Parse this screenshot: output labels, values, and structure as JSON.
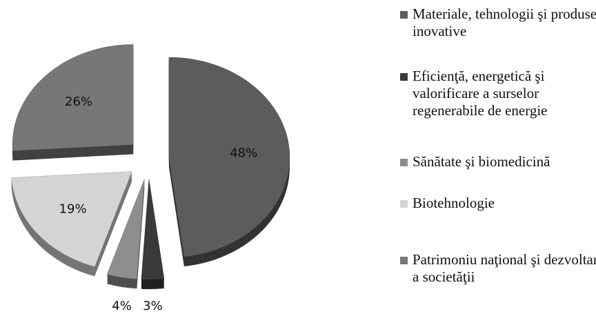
{
  "chart_data": {
    "type": "pie",
    "categories": [
      "Materiale, tehnologii şi produse inovative",
      "Eficienţă, energetică şi valorificare a surselor regenerabile de energie",
      "Sănătate şi biomedicină",
      "Biotehnologie",
      "Patrimoniu naţional şi dezvoltare a societăţii"
    ],
    "values": [
      48,
      3,
      4,
      19,
      26
    ],
    "value_labels": [
      "48%",
      "3%",
      "4%",
      "19%",
      "26%"
    ],
    "colors": [
      "#5c5c5c",
      "#3a3a3a",
      "#8e8e8e",
      "#d4d4d4",
      "#777777"
    ],
    "legend": "right"
  }
}
